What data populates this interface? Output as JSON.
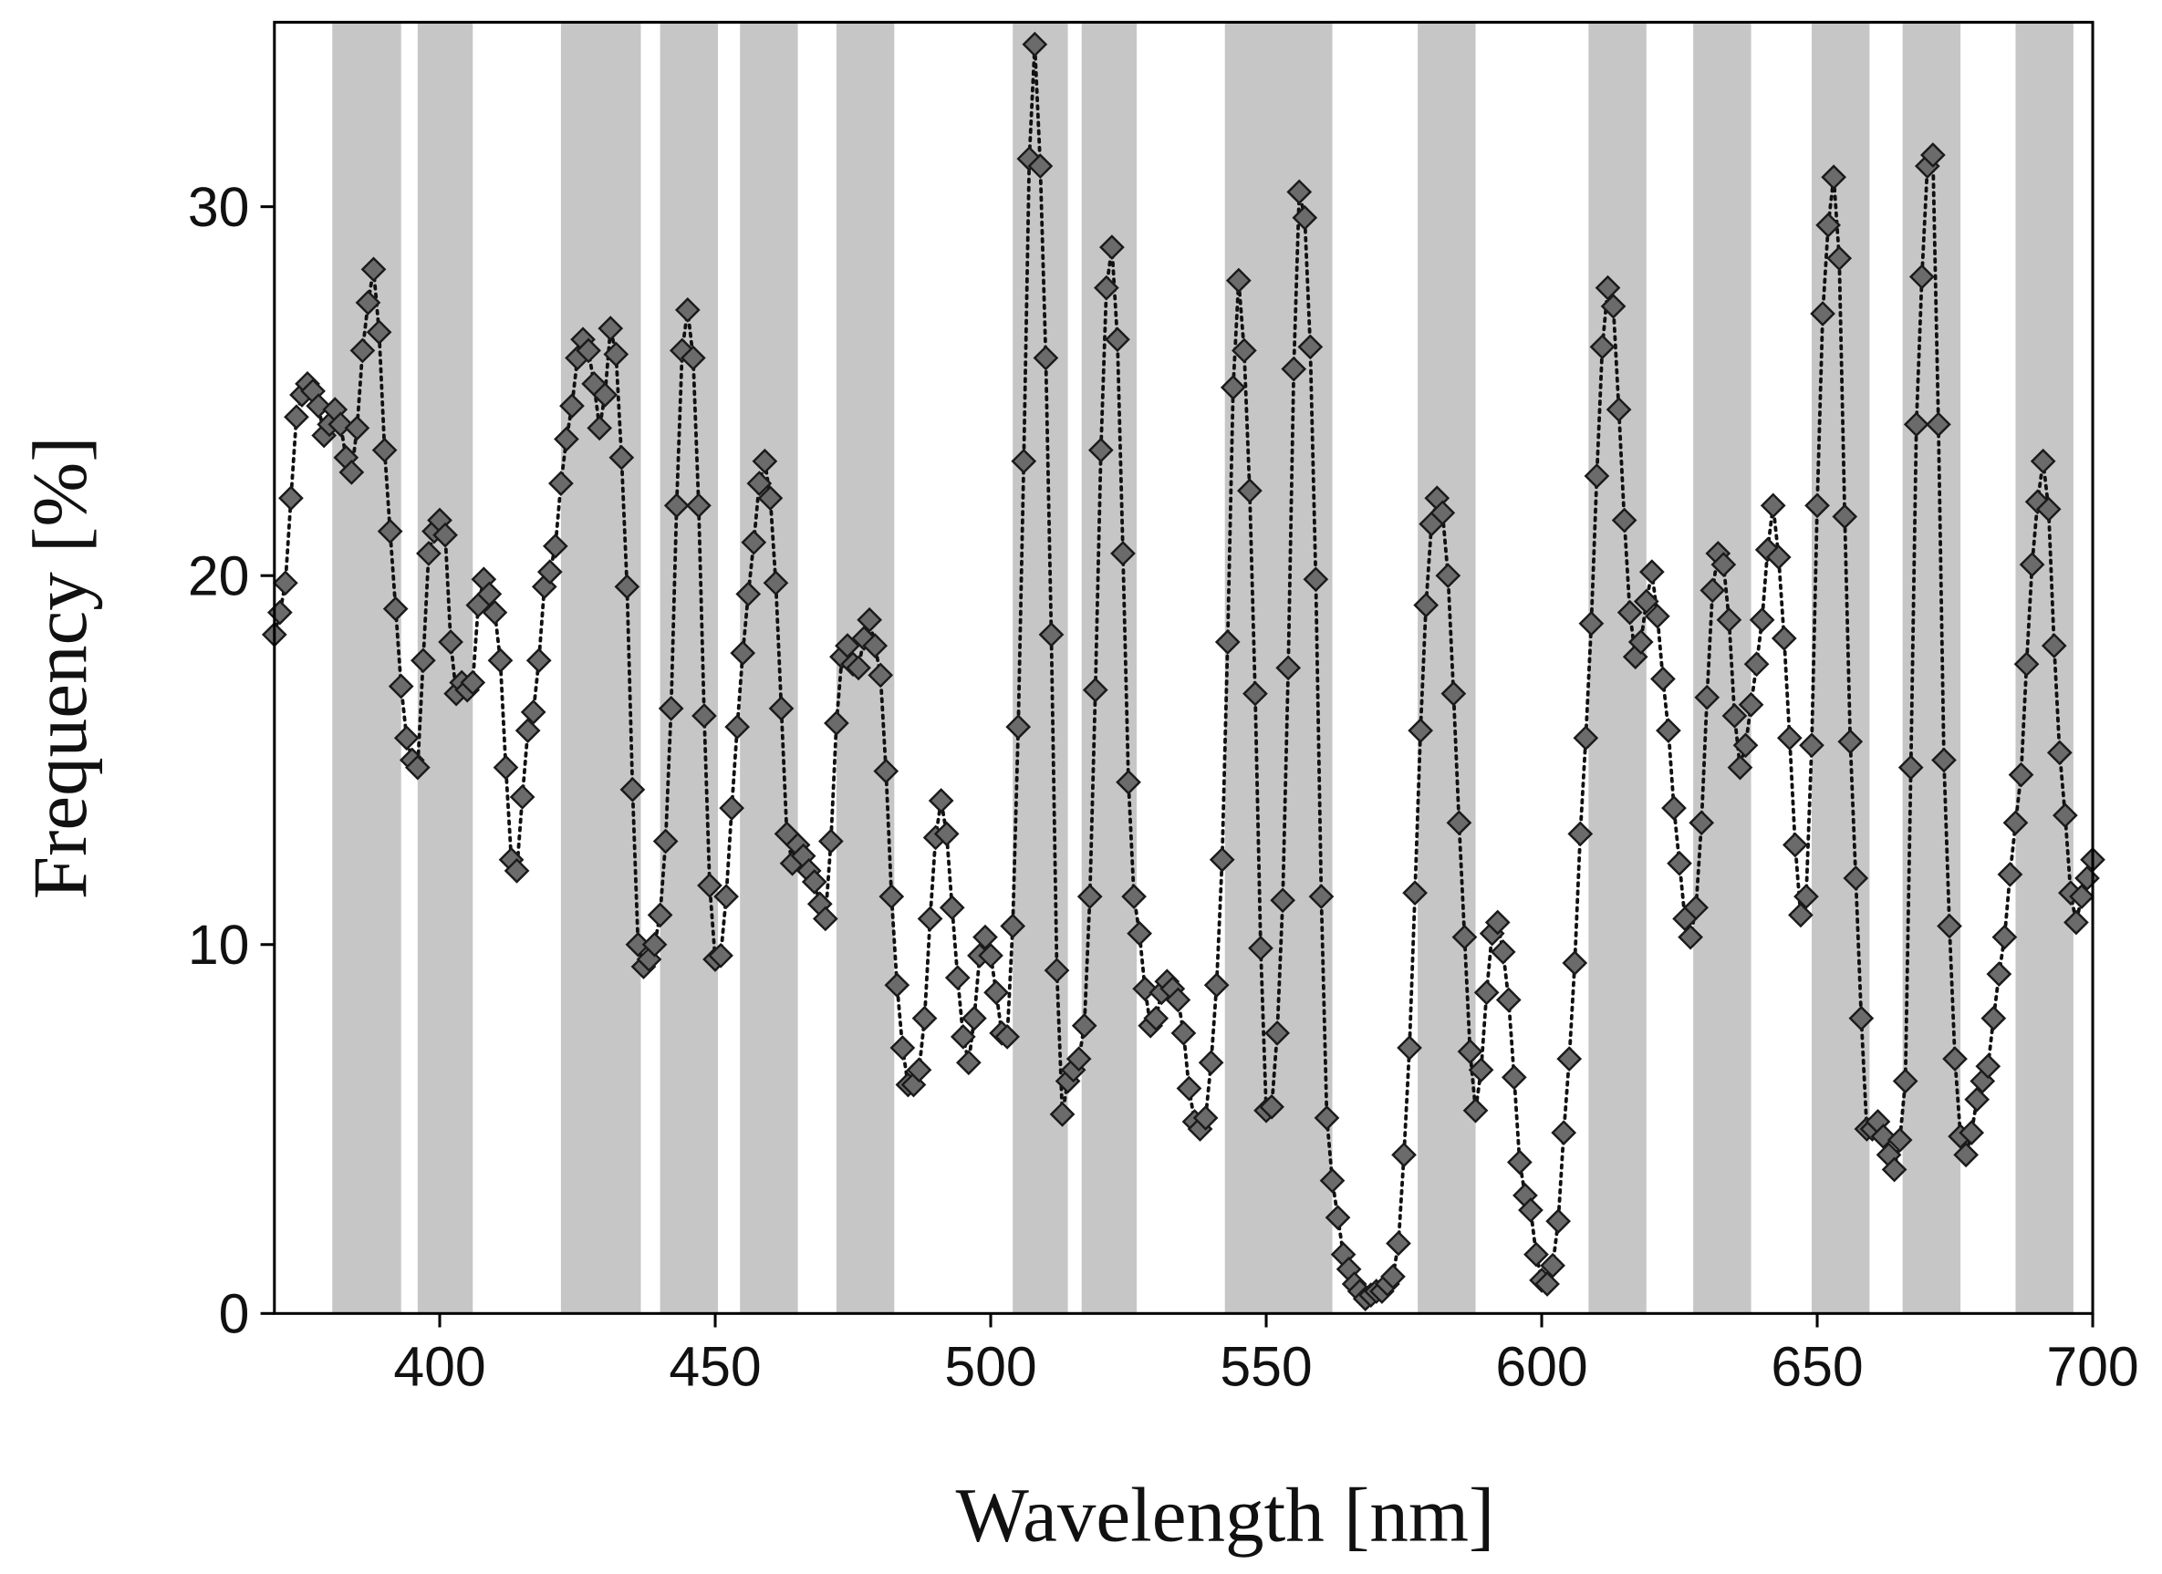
{
  "chart_data": {
    "type": "scatter-line",
    "x_label": "Wavelength  [nm]",
    "y_label": "Frequency  [%]",
    "xlim": [
      370,
      700
    ],
    "ylim": [
      0,
      35
    ],
    "xticks": [
      400,
      450,
      500,
      550,
      600,
      650,
      700
    ],
    "yticks": [
      0,
      10,
      20,
      30
    ],
    "color": "#6b6b6b",
    "band_color": "#c6c6c6",
    "bands": [
      [
        380.5,
        393
      ],
      [
        396,
        406
      ],
      [
        422,
        436.5
      ],
      [
        440,
        450.5
      ],
      [
        454.5,
        465
      ],
      [
        472,
        482.5
      ],
      [
        504,
        514
      ],
      [
        516.5,
        526.5
      ],
      [
        542.5,
        562
      ],
      [
        577.5,
        588
      ],
      [
        608.5,
        619
      ],
      [
        627.5,
        638
      ],
      [
        649,
        659.5
      ],
      [
        665.5,
        676
      ],
      [
        686,
        696.5
      ]
    ],
    "x": [
      370,
      371,
      372,
      373,
      374,
      375,
      376,
      377,
      378,
      379,
      380,
      381,
      382,
      383,
      384,
      385,
      386,
      387,
      388,
      389,
      390,
      391,
      392,
      393,
      394,
      395,
      396,
      397,
      398,
      399,
      400,
      401,
      402,
      403,
      404,
      405,
      406,
      407,
      408,
      409,
      410,
      411,
      412,
      413,
      414,
      415,
      416,
      417,
      418,
      419,
      420,
      421,
      422,
      423,
      424,
      425,
      426,
      427,
      428,
      429,
      430,
      431,
      432,
      433,
      434,
      435,
      436,
      437,
      438,
      439,
      440,
      441,
      442,
      443,
      444,
      445,
      446,
      447,
      448,
      449,
      450,
      451,
      452,
      453,
      454,
      455,
      456,
      457,
      458,
      459,
      460,
      461,
      462,
      463,
      464,
      465,
      466,
      467,
      468,
      469,
      470,
      471,
      472,
      473,
      474,
      475,
      476,
      477,
      478,
      479,
      480,
      481,
      482,
      483,
      484,
      485,
      486,
      487,
      488,
      489,
      490,
      491,
      492,
      493,
      494,
      495,
      496,
      497,
      498,
      499,
      500,
      501,
      502,
      503,
      504,
      505,
      506,
      507,
      508,
      509,
      510,
      511,
      512,
      513,
      514,
      515,
      516,
      517,
      518,
      519,
      520,
      521,
      522,
      523,
      524,
      525,
      526,
      527,
      528,
      529,
      530,
      531,
      532,
      533,
      534,
      535,
      536,
      537,
      538,
      539,
      540,
      541,
      542,
      543,
      544,
      545,
      546,
      547,
      548,
      549,
      550,
      551,
      552,
      553,
      554,
      555,
      556,
      557,
      558,
      559,
      560,
      561,
      562,
      563,
      564,
      565,
      566,
      567,
      568,
      569,
      570,
      571,
      572,
      573,
      574,
      575,
      576,
      577,
      578,
      579,
      580,
      581,
      582,
      583,
      584,
      585,
      586,
      587,
      588,
      589,
      590,
      591,
      592,
      593,
      594,
      595,
      596,
      597,
      598,
      599,
      600,
      601,
      602,
      603,
      604,
      605,
      606,
      607,
      608,
      609,
      610,
      611,
      612,
      613,
      614,
      615,
      616,
      617,
      618,
      619,
      620,
      621,
      622,
      623,
      624,
      625,
      626,
      627,
      628,
      629,
      630,
      631,
      632,
      633,
      634,
      635,
      636,
      637,
      638,
      639,
      640,
      641,
      642,
      643,
      644,
      645,
      646,
      647,
      648,
      649,
      650,
      651,
      652,
      653,
      654,
      655,
      656,
      657,
      658,
      659,
      660,
      661,
      662,
      663,
      664,
      665,
      666,
      667,
      668,
      669,
      670,
      671,
      672,
      673,
      674,
      675,
      676,
      677,
      678,
      679,
      680,
      681,
      682,
      683,
      684,
      685,
      686,
      687,
      688,
      689,
      690,
      691,
      692,
      693,
      694,
      695,
      696,
      697,
      698,
      699,
      700
    ],
    "values": [
      18.4,
      19.0,
      19.8,
      22.1,
      24.3,
      24.9,
      25.2,
      25.0,
      24.6,
      23.8,
      24.1,
      24.5,
      24.1,
      23.2,
      22.8,
      24.0,
      26.1,
      27.4,
      28.3,
      26.6,
      23.4,
      21.2,
      19.1,
      17.0,
      15.6,
      15.0,
      14.8,
      17.7,
      20.6,
      21.2,
      21.5,
      21.1,
      18.2,
      16.8,
      17.1,
      16.9,
      17.1,
      19.2,
      19.9,
      19.5,
      19.0,
      17.7,
      14.8,
      12.3,
      12.0,
      14.0,
      15.8,
      16.3,
      17.7,
      19.7,
      20.1,
      20.8,
      22.5,
      23.7,
      24.6,
      25.9,
      26.4,
      26.1,
      25.2,
      24.0,
      24.9,
      26.7,
      26.0,
      23.2,
      19.7,
      14.2,
      10.0,
      9.4,
      9.6,
      10.0,
      10.8,
      12.8,
      16.4,
      21.9,
      26.1,
      27.2,
      25.9,
      21.9,
      16.2,
      11.6,
      9.6,
      9.7,
      11.3,
      13.7,
      15.9,
      17.9,
      19.5,
      20.9,
      22.5,
      23.1,
      22.1,
      19.8,
      16.4,
      13.0,
      12.2,
      12.7,
      12.4,
      12.0,
      11.7,
      11.1,
      10.7,
      12.8,
      16.0,
      17.8,
      18.1,
      17.6,
      17.5,
      18.3,
      18.8,
      18.1,
      17.3,
      14.7,
      11.3,
      8.9,
      7.2,
      6.2,
      6.2,
      6.6,
      8.0,
      10.7,
      12.9,
      13.9,
      13.0,
      11.0,
      9.1,
      7.5,
      6.8,
      8.0,
      9.7,
      10.2,
      9.7,
      8.7,
      7.6,
      7.5,
      10.5,
      15.9,
      23.1,
      31.3,
      34.4,
      31.1,
      25.9,
      18.4,
      9.3,
      5.4,
      6.3,
      6.6,
      6.9,
      7.8,
      11.3,
      16.9,
      23.4,
      27.8,
      28.9,
      26.4,
      20.6,
      14.4,
      11.3,
      10.3,
      8.8,
      7.8,
      8.0,
      8.7,
      9.0,
      8.8,
      8.5,
      7.6,
      6.1,
      5.2,
      5.0,
      5.3,
      6.8,
      8.9,
      12.3,
      18.2,
      25.1,
      28.0,
      26.1,
      22.3,
      16.8,
      9.9,
      5.5,
      5.6,
      7.6,
      11.2,
      17.5,
      25.6,
      30.4,
      29.7,
      26.2,
      19.9,
      11.3,
      5.3,
      3.6,
      2.6,
      1.6,
      1.2,
      0.8,
      0.6,
      0.4,
      0.5,
      0.6,
      0.6,
      0.8,
      1.0,
      1.9,
      4.3,
      7.2,
      11.4,
      15.8,
      19.2,
      21.4,
      22.1,
      21.7,
      20.0,
      16.8,
      13.3,
      10.2,
      7.1,
      5.5,
      6.6,
      8.7,
      10.3,
      10.6,
      9.8,
      8.5,
      6.4,
      4.1,
      3.2,
      2.8,
      1.6,
      0.9,
      0.8,
      1.3,
      2.5,
      4.9,
      6.9,
      9.5,
      13.0,
      15.6,
      18.7,
      22.7,
      26.2,
      27.8,
      27.3,
      24.5,
      21.5,
      19.0,
      17.8,
      18.2,
      19.3,
      20.1,
      18.9,
      17.2,
      15.8,
      13.7,
      12.2,
      10.7,
      10.2,
      11.0,
      13.3,
      16.7,
      19.6,
      20.6,
      20.3,
      18.8,
      16.2,
      14.8,
      15.4,
      16.5,
      17.6,
      18.8,
      20.7,
      21.9,
      20.5,
      18.3,
      15.6,
      12.7,
      10.8,
      11.3,
      15.4,
      21.9,
      27.1,
      29.5,
      30.8,
      28.6,
      21.6,
      15.5,
      11.8,
      8.0,
      5.0,
      5.0,
      5.2,
      4.8,
      4.3,
      3.9,
      4.7,
      6.3,
      14.8,
      24.1,
      28.1,
      31.1,
      31.4,
      24.1,
      15.0,
      10.5,
      6.9,
      4.8,
      4.3,
      4.9,
      5.8,
      6.3,
      6.7,
      8.0,
      9.2,
      10.2,
      11.9,
      13.3,
      14.6,
      17.6,
      20.3,
      22.0,
      23.1,
      21.8,
      18.1,
      15.2,
      13.5,
      11.4,
      10.6,
      11.3,
      11.8,
      12.3
    ]
  }
}
